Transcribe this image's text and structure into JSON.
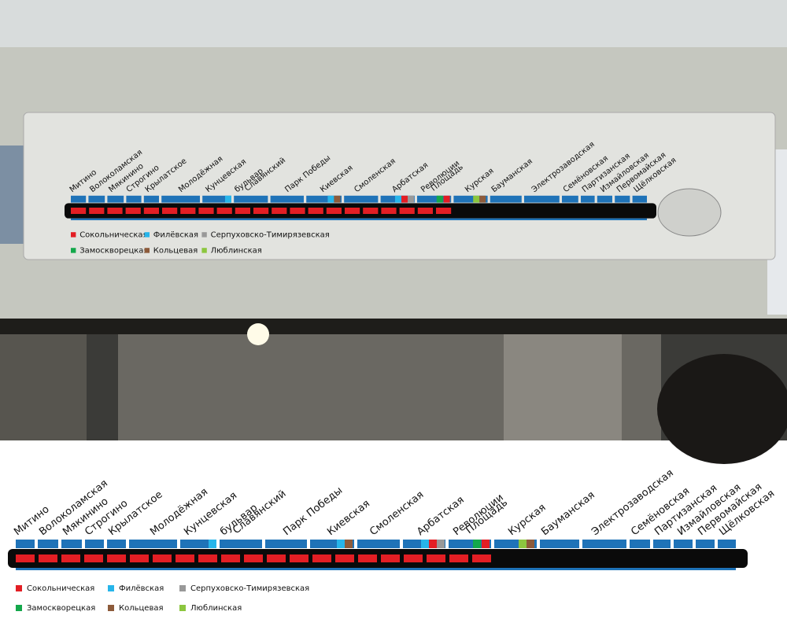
{
  "stations": [
    [
      "Митино"
    ],
    [
      "Волоколамская"
    ],
    [
      "Мякинино"
    ],
    [
      "Строгино"
    ],
    [
      "Крылатское"
    ],
    [
      "Молодёжная"
    ],
    [
      "Кунцевская"
    ],
    [
      "Славянский",
      "бульвар"
    ],
    [
      "Парк Победы"
    ],
    [
      "Киевская"
    ],
    [
      "Смоленская"
    ],
    [
      "Арбатская"
    ],
    [
      "Площадь",
      "Революции"
    ],
    [
      "Курская"
    ],
    [
      "Бауманская"
    ],
    [
      "Электрозаводская"
    ],
    [
      "Семёновская"
    ],
    [
      "Партизанская"
    ],
    [
      "Измайловская"
    ],
    [
      "Первомайская"
    ],
    [
      "Щёлковская"
    ]
  ],
  "legend": [
    {
      "name": "Сокольническая",
      "color": "#e31e24"
    },
    {
      "name": "Филёвская",
      "color": "#27b5ea"
    },
    {
      "name": "Серпуховско-Тимирязевская",
      "color": "#999999"
    },
    {
      "name": "Замоскворецкая",
      "color": "#14a84b"
    },
    {
      "name": "Кольцевая",
      "color": "#8d5b3b"
    },
    {
      "name": "Люблинская",
      "color": "#8cc63f"
    }
  ]
}
